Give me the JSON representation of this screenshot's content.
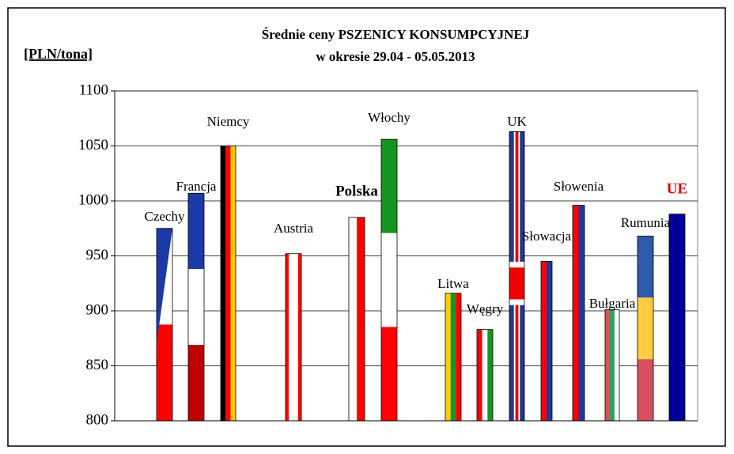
{
  "chart_data": {
    "type": "bar",
    "title": [
      "Średnie ceny PSZENICY KONSUMPCYJNEJ",
      "w okresie 29.04 - 05.05.2013"
    ],
    "y_label": "[PLN/tona]",
    "categories": [
      "Czechy",
      "Francja",
      "Niemcy",
      "Austria",
      "Polska",
      "Włochy",
      "Litwa",
      "Węgry",
      "UK",
      "Słowacja",
      "Słowenia",
      "Bułgaria",
      "Rumunia",
      "UE"
    ],
    "values": [
      975,
      1007,
      1050,
      952,
      985,
      1056,
      916,
      883,
      1063,
      945,
      996,
      901,
      968,
      988
    ],
    "ylim": [
      800,
      1100
    ],
    "yticks": [
      800,
      850,
      900,
      950,
      1000,
      1050,
      1100
    ],
    "grid": true
  }
}
